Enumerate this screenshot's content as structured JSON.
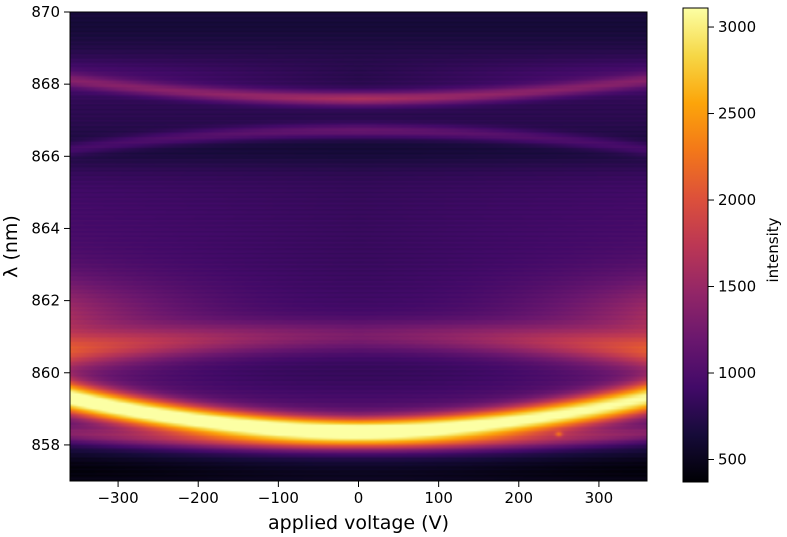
{
  "chart_data": {
    "type": "heatmap",
    "title": "",
    "xlabel": "applied voltage (V)",
    "ylabel": "λ (nm)",
    "colorbar_label": "intensity",
    "colormap": "inferno",
    "xlim": [
      -360,
      360
    ],
    "ylim": [
      857,
      870
    ],
    "clim": [
      370,
      3110
    ],
    "x_ticks": [
      -300,
      -200,
      -100,
      0,
      100,
      200,
      300
    ],
    "x_tick_labels": [
      "−300",
      "−200",
      "−100",
      "0",
      "100",
      "200",
      "300"
    ],
    "y_ticks": [
      858,
      860,
      862,
      864,
      866,
      868,
      870
    ],
    "y_tick_labels": [
      "858",
      "860",
      "862",
      "864",
      "866",
      "868",
      "870"
    ],
    "colorbar_ticks": [
      500,
      1000,
      1500,
      2000,
      2500,
      3000
    ],
    "colorbar_tick_labels": [
      "500",
      "1000",
      "1500",
      "2000",
      "2500",
      "3000"
    ],
    "features": [
      {
        "branch": "bright parabolic band",
        "wavelength_at_0V_nm": 858.4,
        "wavelength_at_edge_nm": 859.3,
        "peak_intensity": 3050
      },
      {
        "branch": "lower parabolic band",
        "wavelength_at_0V_nm": 858.3,
        "wavelength_at_edge_nm": 858.0,
        "peak_intensity": 1500
      },
      {
        "branch": "860-861 nm band",
        "wavelength_at_0V_nm": 861.0,
        "wavelength_at_edge_nm": 860.6,
        "peak_intensity": 1350
      },
      {
        "branch": "upper band a",
        "wavelength_at_0V_nm": 867.6,
        "wavelength_at_edge_nm": 868.1,
        "peak_intensity": 1600
      },
      {
        "branch": "upper band b",
        "wavelength_at_0V_nm": 866.7,
        "wavelength_at_edge_nm": 866.2,
        "peak_intensity": 1200
      }
    ]
  }
}
